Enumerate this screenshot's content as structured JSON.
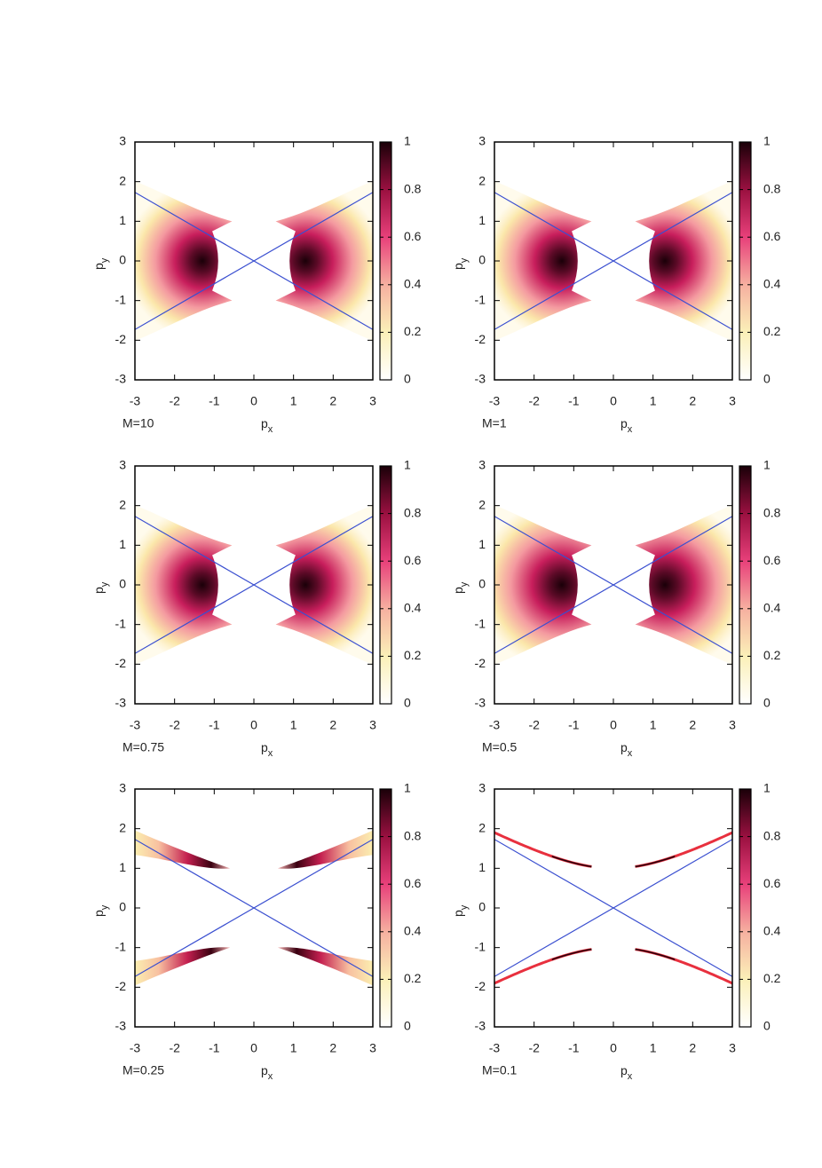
{
  "chart_data": [
    {
      "type": "heatmap",
      "annotation": "M=10",
      "xlabel": "p",
      "xlabel_sub": "x",
      "ylabel": "p",
      "ylabel_sub": "y",
      "xlim": [
        -3,
        3
      ],
      "xticks": [
        -3,
        -2,
        -1,
        0,
        1,
        2,
        3
      ],
      "ylim": [
        -3,
        3
      ],
      "yticks": [
        -3,
        -2,
        -1,
        0,
        1,
        2,
        3
      ],
      "colorbar": {
        "lim": [
          0,
          1
        ],
        "ticks": [
          0,
          0.2,
          0.4,
          0.6,
          0.8,
          1
        ]
      },
      "lines": [
        {
          "color": "#3a4fd0",
          "x": [
            -3,
            3
          ],
          "y": [
            1.73,
            -1.73
          ]
        },
        {
          "color": "#3a4fd0",
          "x": [
            -3,
            3
          ],
          "y": [
            -1.73,
            1.73
          ]
        }
      ]
    },
    {
      "type": "heatmap",
      "annotation": "M=1",
      "xlabel": "p",
      "xlabel_sub": "x",
      "ylabel": "p",
      "ylabel_sub": "y",
      "xlim": [
        -3,
        3
      ],
      "xticks": [
        -3,
        -2,
        -1,
        0,
        1,
        2,
        3
      ],
      "ylim": [
        -3,
        3
      ],
      "yticks": [
        -3,
        -2,
        -1,
        0,
        1,
        2,
        3
      ],
      "colorbar": {
        "lim": [
          0,
          1
        ],
        "ticks": [
          0,
          0.2,
          0.4,
          0.6,
          0.8,
          1
        ]
      },
      "lines": [
        {
          "color": "#3a4fd0",
          "x": [
            -3,
            3
          ],
          "y": [
            1.73,
            -1.73
          ]
        },
        {
          "color": "#3a4fd0",
          "x": [
            -3,
            3
          ],
          "y": [
            -1.73,
            1.73
          ]
        }
      ]
    },
    {
      "type": "heatmap",
      "annotation": "M=0.75",
      "xlabel": "p",
      "xlabel_sub": "x",
      "ylabel": "p",
      "ylabel_sub": "y",
      "xlim": [
        -3,
        3
      ],
      "xticks": [
        -3,
        -2,
        -1,
        0,
        1,
        2,
        3
      ],
      "ylim": [
        -3,
        3
      ],
      "yticks": [
        -3,
        -2,
        -1,
        0,
        1,
        2,
        3
      ],
      "colorbar": {
        "lim": [
          0,
          1
        ],
        "ticks": [
          0,
          0.2,
          0.4,
          0.6,
          0.8,
          1
        ]
      },
      "lines": [
        {
          "color": "#3a4fd0",
          "x": [
            -3,
            3
          ],
          "y": [
            1.73,
            -1.73
          ]
        },
        {
          "color": "#3a4fd0",
          "x": [
            -3,
            3
          ],
          "y": [
            -1.73,
            1.73
          ]
        }
      ]
    },
    {
      "type": "heatmap",
      "annotation": "M=0.5",
      "xlabel": "p",
      "xlabel_sub": "x",
      "ylabel": "p",
      "ylabel_sub": "y",
      "xlim": [
        -3,
        3
      ],
      "xticks": [
        -3,
        -2,
        -1,
        0,
        1,
        2,
        3
      ],
      "ylim": [
        -3,
        3
      ],
      "yticks": [
        -3,
        -2,
        -1,
        0,
        1,
        2,
        3
      ],
      "colorbar": {
        "lim": [
          0,
          1
        ],
        "ticks": [
          0,
          0.2,
          0.4,
          0.6,
          0.8,
          1
        ]
      },
      "lines": [
        {
          "color": "#3a4fd0",
          "x": [
            -3,
            3
          ],
          "y": [
            1.73,
            -1.73
          ]
        },
        {
          "color": "#3a4fd0",
          "x": [
            -3,
            3
          ],
          "y": [
            -1.73,
            1.73
          ]
        }
      ]
    },
    {
      "type": "heatmap",
      "annotation": "M=0.25",
      "xlabel": "p",
      "xlabel_sub": "x",
      "ylabel": "p",
      "ylabel_sub": "y",
      "xlim": [
        -3,
        3
      ],
      "xticks": [
        -3,
        -2,
        -1,
        0,
        1,
        2,
        3
      ],
      "ylim": [
        -3,
        3
      ],
      "yticks": [
        -3,
        -2,
        -1,
        0,
        1,
        2,
        3
      ],
      "colorbar": {
        "lim": [
          0,
          1
        ],
        "ticks": [
          0,
          0.2,
          0.4,
          0.6,
          0.8,
          1
        ]
      },
      "lines": [
        {
          "color": "#3a4fd0",
          "x": [
            -3,
            3
          ],
          "y": [
            1.73,
            -1.73
          ]
        },
        {
          "color": "#3a4fd0",
          "x": [
            -3,
            3
          ],
          "y": [
            -1.73,
            1.73
          ]
        }
      ]
    },
    {
      "type": "heatmap",
      "annotation": "M=0.1",
      "xlabel": "p",
      "xlabel_sub": "x",
      "ylabel": "p",
      "ylabel_sub": "y",
      "xlim": [
        -3,
        3
      ],
      "xticks": [
        -3,
        -2,
        -1,
        0,
        1,
        2,
        3
      ],
      "ylim": [
        -3,
        3
      ],
      "yticks": [
        -3,
        -2,
        -1,
        0,
        1,
        2,
        3
      ],
      "colorbar": {
        "lim": [
          0,
          1
        ],
        "ticks": [
          0,
          0.2,
          0.4,
          0.6,
          0.8,
          1
        ]
      },
      "lines": [
        {
          "color": "#3a4fd0",
          "x": [
            -3,
            3
          ],
          "y": [
            1.73,
            -1.73
          ]
        },
        {
          "color": "#3a4fd0",
          "x": [
            -3,
            3
          ],
          "y": [
            -1.73,
            1.73
          ]
        }
      ]
    }
  ]
}
